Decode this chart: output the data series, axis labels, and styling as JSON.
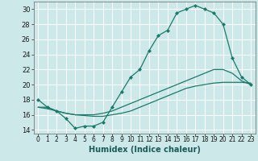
{
  "xlabel": "Humidex (Indice chaleur)",
  "background_color": "#cce8e8",
  "grid_color": "#ffffff",
  "line_color": "#1a7a6a",
  "xlim": [
    -0.5,
    23.5
  ],
  "ylim": [
    13.5,
    31
  ],
  "xticks": [
    0,
    1,
    2,
    3,
    4,
    5,
    6,
    7,
    8,
    9,
    10,
    11,
    12,
    13,
    14,
    15,
    16,
    17,
    18,
    19,
    20,
    21,
    22,
    23
  ],
  "yticks": [
    14,
    16,
    18,
    20,
    22,
    24,
    26,
    28,
    30
  ],
  "series1_x": [
    0,
    1,
    2,
    3,
    4,
    5,
    6,
    7,
    8,
    9,
    10,
    11,
    12,
    13,
    14,
    15,
    16,
    17,
    18,
    19,
    20,
    21,
    22,
    23
  ],
  "series1_y": [
    18,
    17,
    16.5,
    15.5,
    14.2,
    14.5,
    14.5,
    15.0,
    17,
    19,
    21,
    22,
    24.5,
    26.5,
    27.2,
    29.5,
    30,
    30.5,
    30,
    29.5,
    28,
    23.5,
    21,
    20
  ],
  "series2_x": [
    0,
    1,
    2,
    3,
    4,
    5,
    6,
    7,
    8,
    9,
    10,
    11,
    12,
    13,
    14,
    15,
    16,
    17,
    18,
    19,
    20,
    21,
    22,
    23
  ],
  "series2_y": [
    17,
    17,
    16.5,
    16.2,
    16,
    16,
    16,
    16.2,
    16.5,
    17,
    17.5,
    18,
    18.5,
    19,
    19.5,
    20,
    20.5,
    21,
    21.5,
    22,
    22,
    21.5,
    20.5,
    20
  ],
  "series3_x": [
    0,
    1,
    2,
    3,
    4,
    5,
    6,
    7,
    8,
    9,
    10,
    11,
    12,
    13,
    14,
    15,
    16,
    17,
    18,
    19,
    20,
    21,
    22,
    23
  ],
  "series3_y": [
    17,
    16.8,
    16.5,
    16.2,
    16,
    15.9,
    15.8,
    15.8,
    16,
    16.2,
    16.5,
    17,
    17.5,
    18,
    18.5,
    19,
    19.5,
    19.8,
    20,
    20.2,
    20.3,
    20.3,
    20.3,
    20.2
  ],
  "xlabel_fontsize": 7,
  "tick_fontsize": 5.5,
  "ytick_fontsize": 6,
  "linewidth": 0.9,
  "markersize": 2.5
}
